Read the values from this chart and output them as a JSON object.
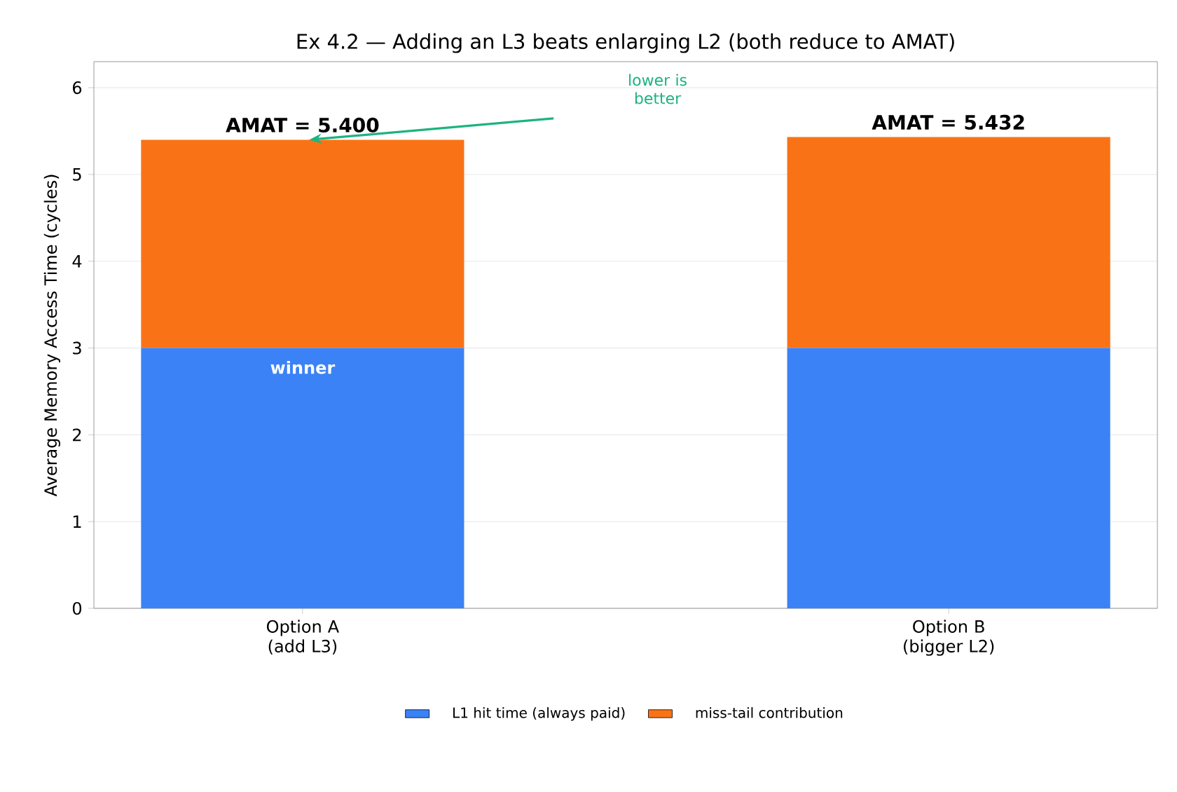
{
  "chart_data": {
    "type": "bar",
    "title": "Ex 4.2 — Adding an L3 beats enlarging L2 (both reduce to AMAT)",
    "ylabel": "Average Memory Access Time (cycles)",
    "categories": [
      "Option A (add L3)",
      "Option B (bigger L2)"
    ],
    "series": [
      {
        "name": "L1 hit time (always paid)",
        "color": "#3b82f6",
        "values": [
          3,
          3
        ]
      },
      {
        "name": "miss-tail contribution",
        "color": "#f97316",
        "values": [
          2.4,
          2.432
        ]
      }
    ],
    "stacked": true,
    "ylim": [
      0,
      6.3
    ],
    "yticks": [
      0,
      1,
      2,
      3,
      4,
      5,
      6
    ],
    "grid": "y",
    "legend": "bottom",
    "totals": [
      "AMAT = 5.400",
      "AMAT = 5.432"
    ],
    "annotations": [
      "lower is better",
      {
        "text": "winner",
        "x": "Option A (add L3)",
        "y": 3
      }
    ]
  }
}
